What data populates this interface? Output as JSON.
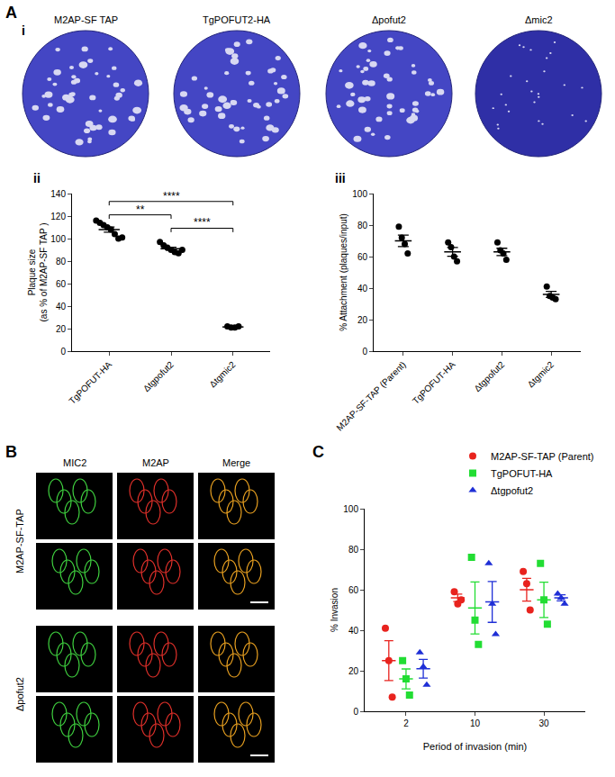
{
  "panel_A": {
    "label": "A",
    "subpanel": "i",
    "plaque_images": [
      "M2AP-SF TAP",
      "TgPOFUT2-HA",
      "Δpofut2",
      "Δmic2"
    ]
  },
  "panel_B": {
    "label": "B",
    "channels": [
      "MIC2",
      "M2AP",
      "Merge"
    ],
    "strains": [
      "M2AP-SF-TAP",
      "Δpofut2"
    ]
  },
  "chart_data": [
    {
      "panel": "ii",
      "type": "scatter",
      "categories": [
        "TgPOFUT-HA",
        "Δtgpofut2",
        "Δtgmic2"
      ],
      "ylabel": [
        "Plaque size",
        "(as % of M2AP-SF TAP )"
      ],
      "ylim": [
        0,
        140
      ],
      "yticks": [
        0,
        20,
        40,
        60,
        80,
        100,
        120,
        140
      ],
      "values": [
        [
          116,
          114,
          112,
          110,
          108,
          104,
          100,
          101
        ],
        [
          97,
          94,
          92,
          90,
          88,
          87,
          90
        ],
        [
          22,
          21,
          21,
          22
        ]
      ],
      "means": [
        108,
        91,
        21.5
      ],
      "sem": [
        2.3,
        1.3,
        0.3
      ],
      "color": "#000000",
      "marker": "circle",
      "significance": [
        {
          "between": [
            "Δtgpofut2",
            "Δtgmic2"
          ],
          "label": "****"
        },
        {
          "between": [
            "TgPOFUT-HA",
            "Δtgpofut2"
          ],
          "label": "**"
        },
        {
          "between": [
            "TgPOFUT-HA",
            "Δtgmic2"
          ],
          "label": "****"
        }
      ]
    },
    {
      "panel": "iii",
      "type": "scatter",
      "categories": [
        "M2AP-SF-TAP (Parent)",
        "TgPOFUT-HA",
        "Δtgpofut2",
        "Δtgmic2"
      ],
      "ylabel": [
        "% Attachment (plaques/input)"
      ],
      "ylim": [
        0,
        100
      ],
      "yticks": [
        0,
        20,
        40,
        60,
        80,
        100
      ],
      "values": [
        [
          79,
          72,
          68,
          62
        ],
        [
          69,
          66,
          60,
          57
        ],
        [
          69,
          64,
          62,
          58
        ],
        [
          41,
          35,
          34,
          33
        ]
      ],
      "means": [
        70,
        63,
        63,
        36
      ],
      "sem": [
        3.6,
        2.8,
        2.3,
        1.9
      ],
      "color": "#000000",
      "marker": "circle"
    },
    {
      "panel": "C",
      "type": "scatter",
      "categories": [
        "2",
        "10",
        "30"
      ],
      "xlabel": "Period of invasion (min)",
      "ylabel": [
        "% Invasion"
      ],
      "ylim": [
        0,
        100
      ],
      "yticks": [
        0,
        20,
        40,
        60,
        80,
        100
      ],
      "legend": "top right",
      "series": [
        {
          "name": "M2AP-SF-TAP (Parent)",
          "color": "#e8231e",
          "marker": "circle",
          "values": [
            [
              41,
              25,
              7
            ],
            [
              59,
              53,
              55
            ],
            [
              69,
              63,
              50
            ]
          ],
          "means": [
            25,
            56,
            60
          ],
          "sem": [
            9.8,
            1.8,
            5.6
          ]
        },
        {
          "name": "TgPOFUT-HA",
          "color": "#22dd33",
          "marker": "square",
          "values": [
            [
              25,
              16,
              8
            ],
            [
              76,
              45,
              33
            ],
            [
              73,
              55,
              43
            ]
          ],
          "means": [
            16,
            51,
            55
          ],
          "sem": [
            4.9,
            12.8,
            8.7
          ]
        },
        {
          "name": "Δtgpofut2",
          "color": "#1f2fd6",
          "marker": "triangle-up",
          "values": [
            [
              29,
              22,
              13
            ],
            [
              73,
              53,
              38
            ],
            [
              58,
              56,
              53
            ]
          ],
          "means": [
            21,
            54,
            56
          ],
          "sem": [
            4.6,
            10.1,
            1.5
          ]
        }
      ]
    }
  ]
}
